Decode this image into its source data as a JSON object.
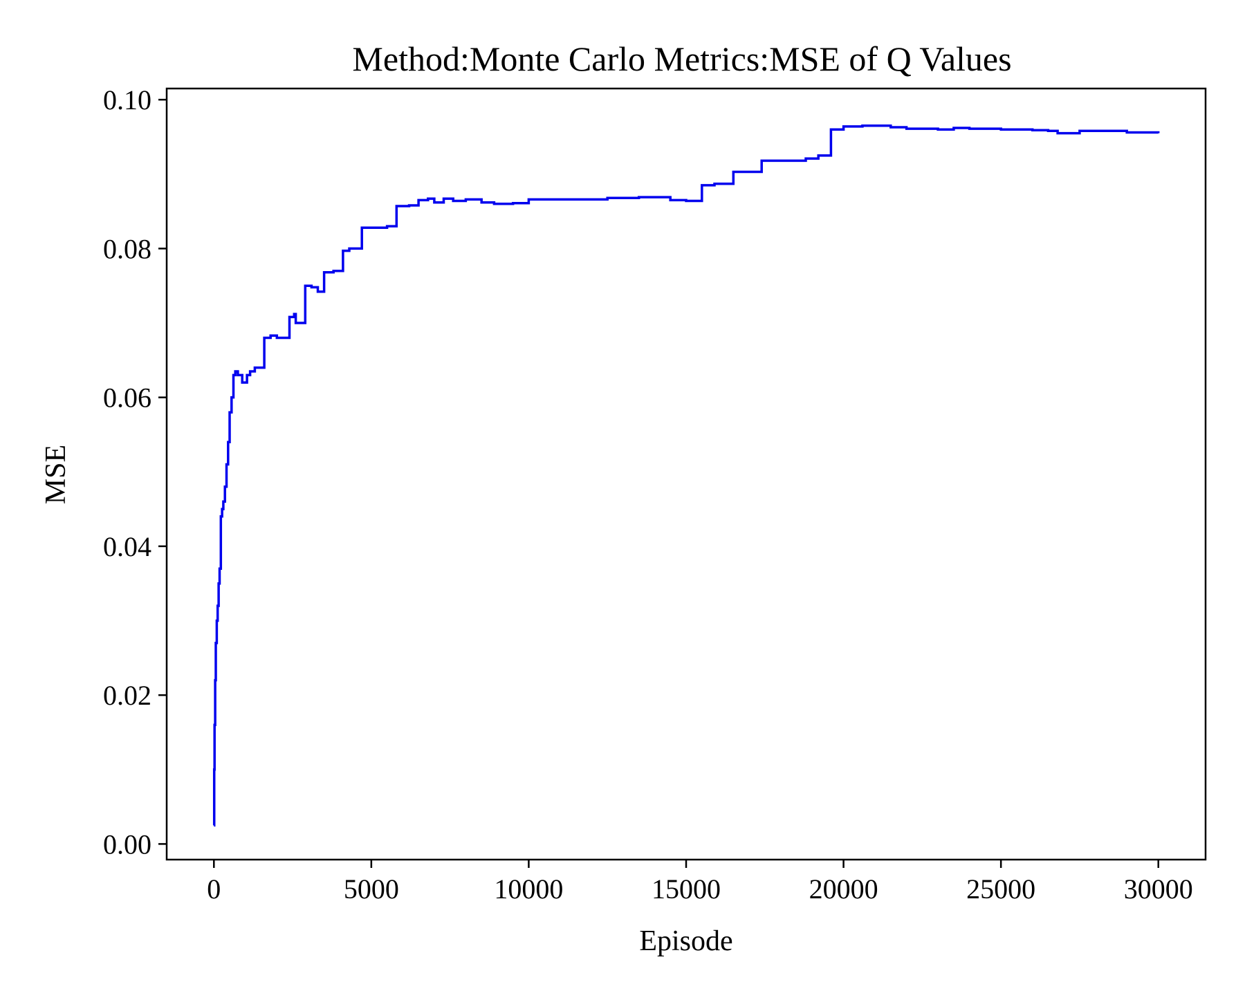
{
  "chart_data": {
    "type": "line",
    "title": "Method:Monte Carlo   Metrics:MSE of Q Values",
    "xlabel": "Episode",
    "ylabel": "MSE",
    "xlim": [
      -1500,
      31500
    ],
    "ylim": [
      -0.0021,
      0.1015
    ],
    "xticks": [
      0,
      5000,
      10000,
      15000,
      20000,
      25000,
      30000
    ],
    "xtick_labels": [
      "0",
      "5000",
      "10000",
      "15000",
      "20000",
      "25000",
      "30000"
    ],
    "yticks": [
      0.0,
      0.02,
      0.04,
      0.06,
      0.08,
      0.1
    ],
    "ytick_labels": [
      "0.00",
      "0.02",
      "0.04",
      "0.06",
      "0.08",
      "0.10"
    ],
    "grid": false,
    "legend": "none",
    "series": [
      {
        "color": "#0000ee",
        "step": true,
        "x": [
          0,
          10,
          20,
          40,
          60,
          90,
          120,
          150,
          180,
          220,
          260,
          300,
          350,
          400,
          450,
          500,
          560,
          620,
          680,
          760,
          900,
          1050,
          1150,
          1300,
          1600,
          1800,
          2000,
          2400,
          2550,
          2600,
          2900,
          3100,
          3300,
          3500,
          3800,
          4100,
          4300,
          4700,
          5000,
          5500,
          5800,
          6200,
          6500,
          6800,
          7000,
          7300,
          7600,
          8000,
          8500,
          8900,
          9500,
          10000,
          11000,
          12000,
          12500,
          13000,
          13500,
          14000,
          14500,
          15000,
          15500,
          15900,
          16500,
          17400,
          18000,
          18800,
          19200,
          19600,
          20000,
          20600,
          21500,
          22000,
          23000,
          23500,
          24000,
          25000,
          26000,
          26500,
          26800,
          27500,
          28500,
          29000,
          30000
        ],
        "y": [
          0.0025,
          0.01,
          0.016,
          0.022,
          0.027,
          0.03,
          0.032,
          0.035,
          0.037,
          0.044,
          0.045,
          0.046,
          0.048,
          0.051,
          0.054,
          0.058,
          0.06,
          0.063,
          0.0635,
          0.063,
          0.062,
          0.063,
          0.0635,
          0.064,
          0.068,
          0.0683,
          0.068,
          0.0708,
          0.0712,
          0.07,
          0.075,
          0.0748,
          0.0742,
          0.0768,
          0.077,
          0.0797,
          0.08,
          0.0828,
          0.0828,
          0.083,
          0.0857,
          0.0858,
          0.0865,
          0.0867,
          0.0862,
          0.0867,
          0.0864,
          0.0866,
          0.0862,
          0.086,
          0.0861,
          0.0866,
          0.0866,
          0.0866,
          0.0868,
          0.0868,
          0.0869,
          0.0869,
          0.0865,
          0.0864,
          0.0885,
          0.0887,
          0.0903,
          0.0918,
          0.0918,
          0.0921,
          0.0925,
          0.096,
          0.0964,
          0.0965,
          0.0963,
          0.0961,
          0.096,
          0.0962,
          0.0961,
          0.096,
          0.0959,
          0.0958,
          0.0955,
          0.0958,
          0.0958,
          0.0956,
          0.0955
        ]
      }
    ]
  }
}
